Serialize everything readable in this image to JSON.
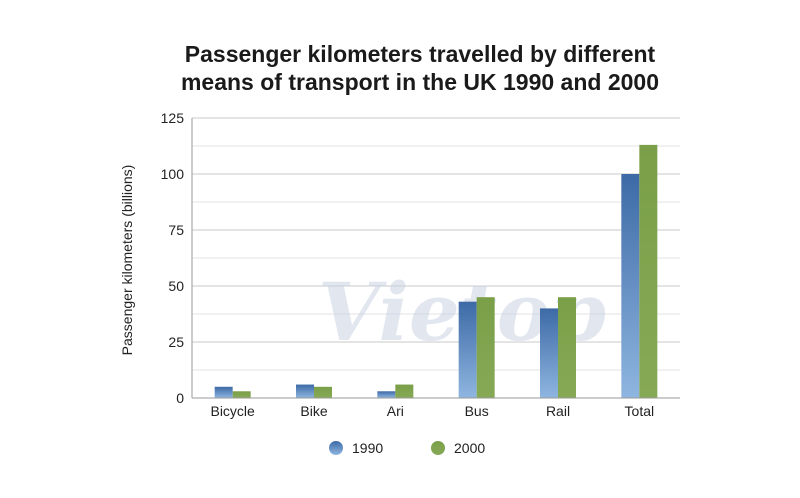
{
  "chart_data": {
    "type": "bar",
    "title_lines": [
      "Passenger kilometers travelled by different",
      "means of transport in the UK 1990 and 2000"
    ],
    "ylabel": "Passenger kilometers (billions)",
    "xlabel": "",
    "categories": [
      "Bicycle",
      "Bike",
      "Ari",
      "Bus",
      "Rail",
      "Total"
    ],
    "series": [
      {
        "name": "1990",
        "values": [
          5,
          6,
          3,
          43,
          40,
          100
        ],
        "color": "#4a78b0"
      },
      {
        "name": "2000",
        "values": [
          3,
          5,
          6,
          45,
          45,
          113
        ],
        "color": "#7ea24e"
      }
    ],
    "ylim": [
      0,
      125
    ],
    "yticks": [
      0,
      25,
      50,
      75,
      100,
      125
    ],
    "grid": true,
    "legend_position": "bottom"
  },
  "watermark": "Vietop"
}
